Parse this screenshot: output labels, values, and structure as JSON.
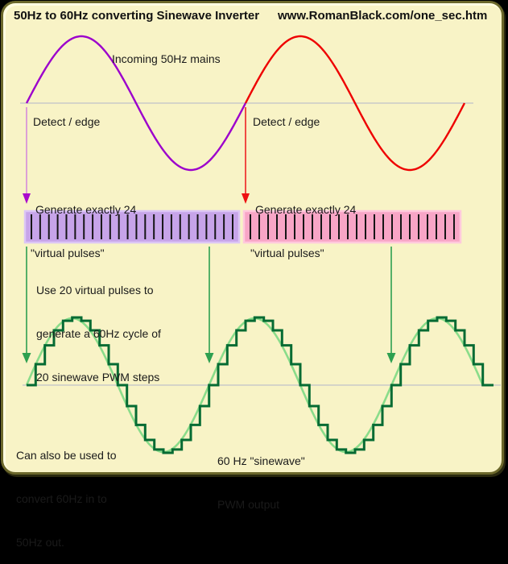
{
  "title": {
    "left": "50Hz to 60Hz converting Sinewave Inverter",
    "right": "www.RomanBlack.com/one_sec.htm"
  },
  "labels": {
    "incoming": "Incoming 50Hz mains",
    "detect_left": "Detect / edge",
    "detect_right": "Detect / edge",
    "generate_line1": "Generate exactly 24",
    "generate_line2": "\"virtual pulses\"",
    "use_pulses": [
      "Use 20 virtual pulses to",
      "generate a 60Hz cycle of",
      "20 sinewave PWM steps"
    ],
    "can_also": [
      "Can also be used to",
      "convert 60Hz in to",
      "50Hz out."
    ],
    "output": [
      "60 Hz \"sinewave\"",
      "PWM output"
    ]
  },
  "colors": {
    "background": "#F8F3C6",
    "border": "#6B672B",
    "border_highlight": "#FFFCE2",
    "text": "#1A1A1A",
    "purple_wave": "#9C00CC",
    "red_wave": "#EE0000",
    "violet_arrow_line": "#D58CDB",
    "violet_arrow_head": "#AA0ACC",
    "red_arrow_line": "#EE2222",
    "red_arrow_head": "#EE1111",
    "lavender_bar": "#C7A4E9",
    "lavender_bar_edge": "#DCC6F5",
    "pink_bar": "#F8A5C6",
    "pink_bar_edge": "#FFC9DC",
    "pulse_tick": "#161616",
    "green_arrow": "#2EA050",
    "pwm_dark_green": "#056B33",
    "sine_light_green": "#8ADC8A",
    "axis_gray": "#C9C9C9"
  },
  "chart_data": {
    "type": "line",
    "title": "50Hz to 60Hz converting Sinewave Inverter",
    "input_wave": {
      "label": "Incoming 50Hz mains",
      "frequency_hz": 50,
      "cycles_shown": 2,
      "cycle_colors": [
        "#9C00CC",
        "#EE0000"
      ],
      "edge_detect_per_cycle": 1
    },
    "virtual_pulses": {
      "per_cycle": 24,
      "bars": [
        {
          "fill": "#C7A4E9",
          "pulses": 24
        },
        {
          "fill": "#F8A5C6",
          "pulses": 24
        }
      ]
    },
    "output_wave": {
      "label": "60 Hz \"sinewave\" PWM output",
      "frequency_hz": 60,
      "pwm_steps_per_cycle": 20,
      "pulses_used_per_cycle": 20,
      "cycles_shown": 2.5,
      "step_levels_normalized": [
        0,
        0.309,
        0.588,
        0.809,
        0.951,
        1.0,
        0.951,
        0.809,
        0.588,
        0.309,
        0,
        -0.309,
        -0.588,
        -0.809,
        -0.951,
        -1.0,
        -0.951,
        -0.809,
        -0.588,
        -0.309
      ]
    },
    "legend_position": "none",
    "grid": "off"
  }
}
